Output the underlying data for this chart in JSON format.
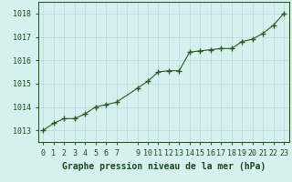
{
  "x": [
    0,
    1,
    2,
    3,
    4,
    5,
    6,
    7,
    9,
    10,
    11,
    12,
    13,
    14,
    15,
    16,
    17,
    18,
    19,
    20,
    21,
    22,
    23
  ],
  "y": [
    1013.0,
    1013.3,
    1013.5,
    1013.5,
    1013.7,
    1014.0,
    1014.1,
    1014.2,
    1014.8,
    1015.1,
    1015.5,
    1015.55,
    1015.55,
    1016.35,
    1016.4,
    1016.45,
    1016.5,
    1016.5,
    1016.8,
    1016.9,
    1017.15,
    1017.5,
    1018.0
  ],
  "line_color": "#2d5a1e",
  "marker": "+",
  "marker_size": 4,
  "bg_color": "#d6f0f0",
  "grid_color": "#b8d8d8",
  "xlabel": "Graphe pression niveau de la mer (hPa)",
  "xlabel_color": "#1a4a1a",
  "xlabel_fontsize": 7,
  "tick_label_color": "#1a4a1a",
  "tick_fontsize": 6,
  "ytick_labels": [
    1013,
    1014,
    1015,
    1016,
    1017,
    1018
  ],
  "ylim": [
    1012.5,
    1018.5
  ],
  "xlim": [
    -0.5,
    23.5
  ],
  "xtick_positions": [
    0,
    1,
    2,
    3,
    4,
    5,
    6,
    7,
    9,
    10,
    11,
    12,
    13,
    14,
    15,
    16,
    17,
    18,
    19,
    20,
    21,
    22,
    23
  ],
  "xtick_labels": [
    "0",
    "1",
    "2",
    "3",
    "4",
    "5",
    "6",
    "7",
    "9",
    "10",
    "11",
    "12",
    "13",
    "14",
    "15",
    "16",
    "17",
    "18",
    "19",
    "20",
    "21",
    "22",
    "23"
  ]
}
